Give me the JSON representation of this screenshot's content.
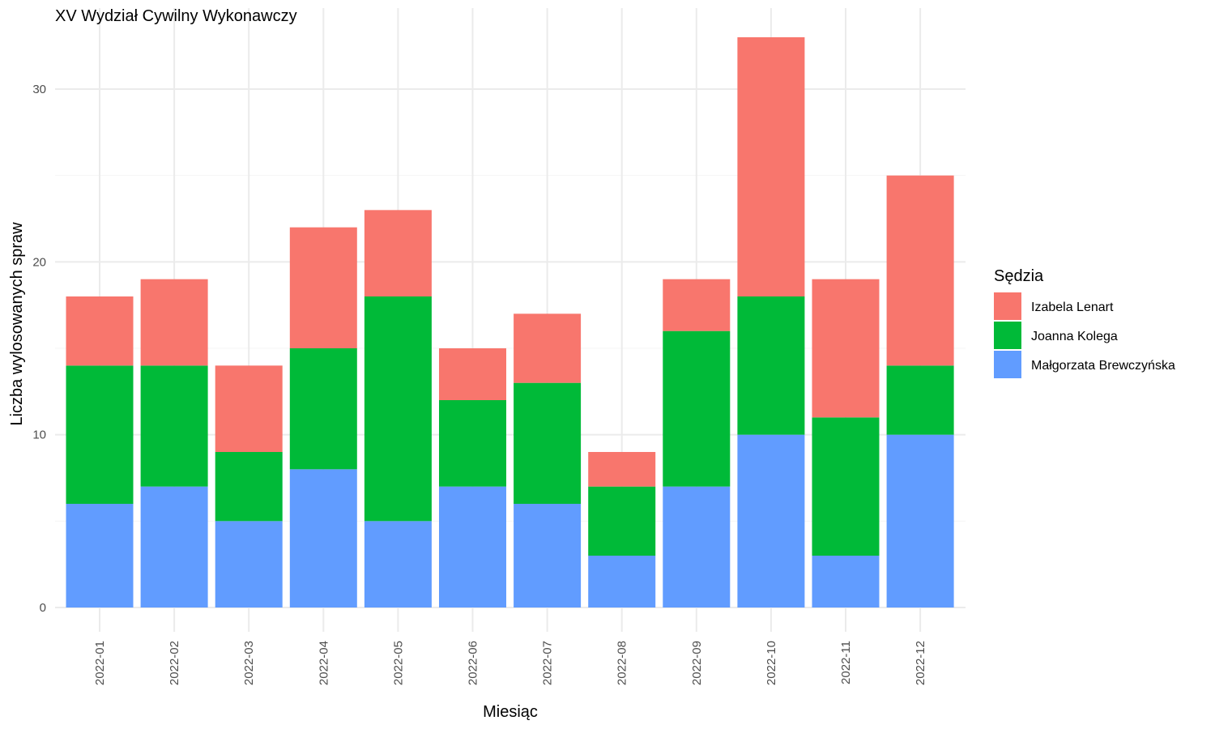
{
  "chart_data": {
    "type": "bar",
    "stacked": true,
    "title": "XV Wydział Cywilny Wykonawczy",
    "xlabel": "Miesiąc",
    "ylabel": "Liczba wylosowanych spraw",
    "categories": [
      "2022-01",
      "2022-02",
      "2022-03",
      "2022-04",
      "2022-05",
      "2022-06",
      "2022-07",
      "2022-08",
      "2022-09",
      "2022-10",
      "2022-11",
      "2022-12"
    ],
    "series": [
      {
        "name": "Małgorzata Brewczyńska",
        "color": "#619CFF",
        "values": [
          6,
          7,
          5,
          8,
          5,
          7,
          6,
          3,
          7,
          10,
          3,
          10
        ]
      },
      {
        "name": "Joanna Kolega",
        "color": "#00BA38",
        "values": [
          8,
          7,
          4,
          7,
          13,
          5,
          7,
          4,
          9,
          8,
          8,
          4
        ]
      },
      {
        "name": "Izabela Lenart",
        "color": "#F8766D",
        "values": [
          4,
          5,
          5,
          7,
          5,
          3,
          4,
          2,
          3,
          15,
          8,
          11
        ]
      }
    ],
    "ylim": [
      0,
      33
    ],
    "yticks": [
      "0",
      "10",
      "20",
      "30"
    ],
    "grid": true,
    "legend": {
      "title": "Sędzia",
      "position": "right",
      "entries": [
        "Izabela Lenart",
        "Joanna Kolega",
        "Małgorzata Brewczyńska"
      ]
    }
  }
}
